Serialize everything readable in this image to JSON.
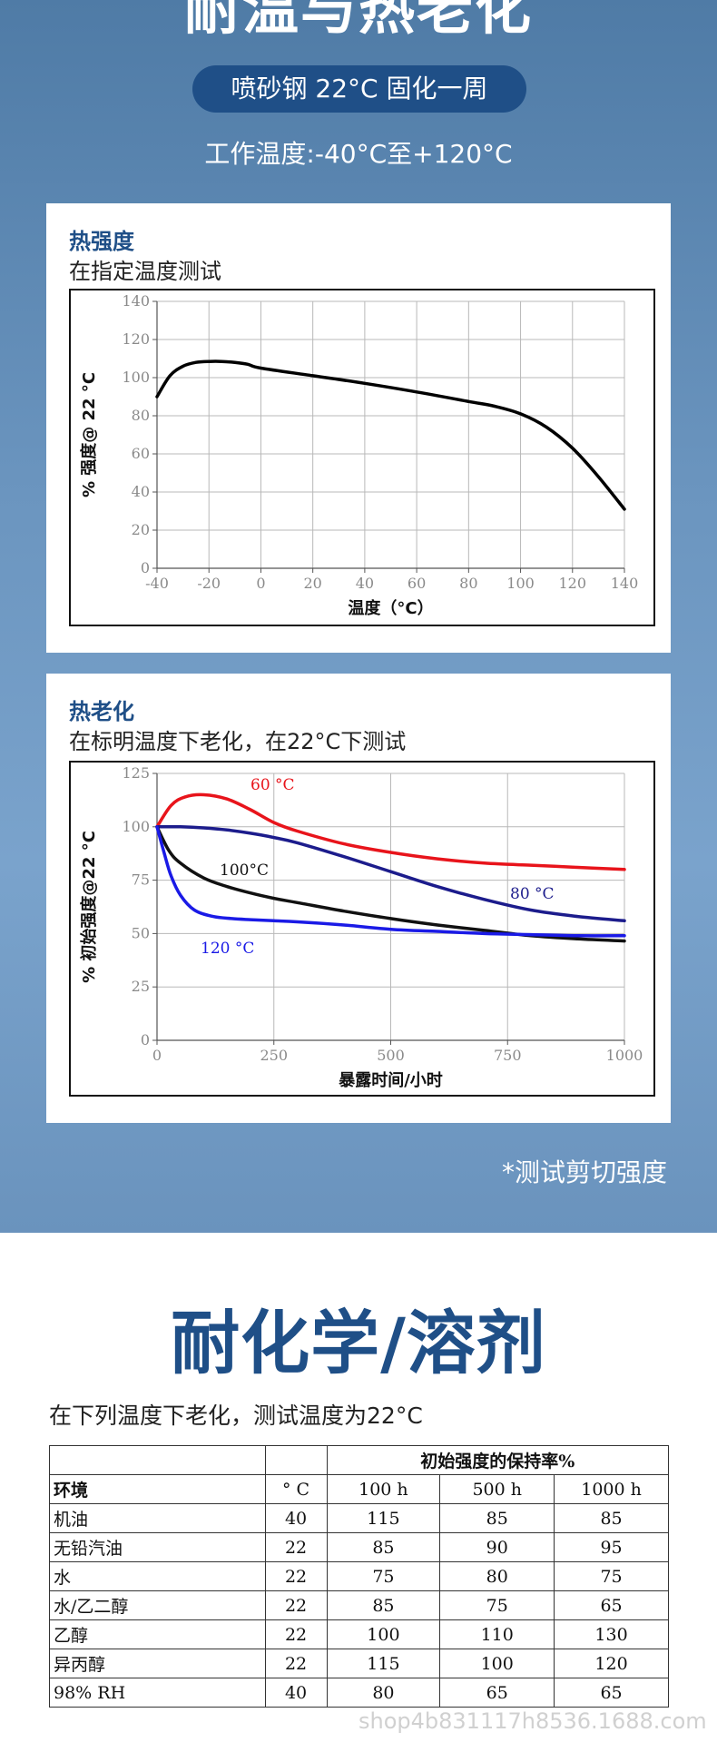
{
  "hero": {
    "title": "耐温与热老化",
    "pill": "喷砂钢 22°C 固化一周",
    "operating_temp": "工作温度:-40°C至+120°C",
    "footnote": "*测试剪切强度"
  },
  "card1": {
    "title": "热强度",
    "subtitle": "在指定温度测试"
  },
  "card2": {
    "title": "热老化",
    "subtitle": "在标明温度下老化，在22°C下测试"
  },
  "chart_data": [
    {
      "type": "line",
      "xlabel": "温度（°C）",
      "ylabel": "% 强度@ 22 °C",
      "xlim": [
        -40,
        140
      ],
      "ylim": [
        0,
        140
      ],
      "xticks": [
        -40,
        -20,
        0,
        20,
        40,
        60,
        80,
        100,
        120,
        140
      ],
      "yticks": [
        0,
        20,
        40,
        60,
        80,
        100,
        120,
        140
      ],
      "grid": true,
      "series": [
        {
          "color": "#000000",
          "x": [
            -40,
            -35,
            -30,
            -25,
            -20,
            -15,
            -10,
            -5,
            0,
            20,
            40,
            60,
            80,
            90,
            100,
            110,
            120,
            130,
            140
          ],
          "y": [
            90,
            101,
            106,
            108,
            108.5,
            108.5,
            108,
            107,
            105,
            101,
            97,
            92.5,
            87.5,
            85,
            81,
            74,
            63,
            48,
            31
          ]
        }
      ]
    },
    {
      "type": "line",
      "xlabel": "暴露时间/小时",
      "ylabel": "% 初始强度@22 °C",
      "xlim": [
        0,
        1000
      ],
      "ylim": [
        0,
        125
      ],
      "xticks": [
        0,
        250,
        500,
        750,
        1000
      ],
      "yticks": [
        0,
        25,
        50,
        75,
        100,
        125
      ],
      "grid": true,
      "series": [
        {
          "name": "60 °C",
          "color": "#e8141b",
          "x": [
            0,
            30,
            60,
            100,
            150,
            200,
            250,
            300,
            400,
            500,
            600,
            700,
            800,
            900,
            1000
          ],
          "y": [
            100,
            110,
            114,
            115,
            113,
            108,
            102,
            98,
            92,
            88,
            85,
            83,
            82,
            81,
            80
          ]
        },
        {
          "name": "80 °C",
          "color": "#1c1c8c",
          "x": [
            0,
            50,
            100,
            150,
            200,
            250,
            300,
            400,
            500,
            600,
            700,
            800,
            900,
            1000
          ],
          "y": [
            100,
            100,
            99.5,
            98.5,
            97,
            95,
            92.5,
            86,
            79,
            72,
            66,
            61,
            58,
            56
          ]
        },
        {
          "name": "100°C",
          "color": "#111111",
          "x": [
            0,
            25,
            50,
            100,
            150,
            200,
            250,
            300,
            400,
            500,
            600,
            700,
            800,
            900,
            1000
          ],
          "y": [
            100,
            89,
            83,
            76,
            72,
            69,
            66.5,
            64.5,
            60.5,
            57,
            54,
            51.5,
            49,
            47.5,
            46.5
          ]
        },
        {
          "name": "120 °C",
          "color": "#1a1ae6",
          "x": [
            0,
            15,
            30,
            50,
            80,
            120,
            160,
            200,
            250,
            300,
            400,
            500,
            600,
            700,
            800,
            900,
            1000
          ],
          "y": [
            100,
            88,
            77,
            68,
            61,
            58,
            57,
            56.5,
            56,
            55.5,
            54,
            52,
            51,
            50,
            49.5,
            49,
            49
          ]
        }
      ]
    }
  ],
  "section2": {
    "title": "耐化学/溶剂",
    "subtitle": "在下列温度下老化，测试温度为22°C",
    "table": {
      "group_header": "初始强度的保持率%",
      "headers": [
        "环境",
        "° C",
        "100 h",
        "500 h",
        "1000 h"
      ],
      "rows": [
        [
          "机油",
          "40",
          "115",
          "85",
          "85"
        ],
        [
          "无铅汽油",
          "22",
          "85",
          "90",
          "95"
        ],
        [
          "水",
          "22",
          "75",
          "80",
          "75"
        ],
        [
          "水/乙二醇",
          "22",
          "85",
          "75",
          "65"
        ],
        [
          "乙醇",
          "22",
          "100",
          "110",
          "130"
        ],
        [
          "异丙醇",
          "22",
          "115",
          "100",
          "120"
        ],
        [
          "98% RH",
          "40",
          "80",
          "65",
          "65"
        ]
      ]
    }
  },
  "watermark": "shop4b831117h8536.1688.com"
}
